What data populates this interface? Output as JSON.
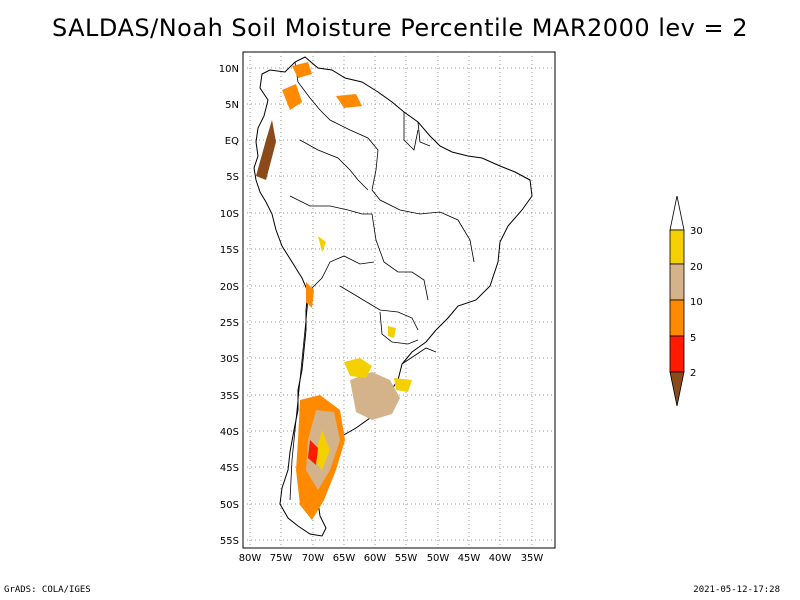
{
  "title": "SALDAS/Noah Soil Moisture Percentile MAR2000 lev = 2",
  "footer": {
    "left": "GrADS: COLA/IGES",
    "right": "2021-05-12-17:28"
  },
  "map": {
    "lat_labels": [
      "10N",
      "5N",
      "EQ",
      "5S",
      "10S",
      "15S",
      "20S",
      "25S",
      "30S",
      "35S",
      "40S",
      "45S",
      "50S",
      "55S"
    ],
    "lon_labels": [
      "80W",
      "75W",
      "70W",
      "65W",
      "60W",
      "55W",
      "50W",
      "45W",
      "40W",
      "35W"
    ]
  },
  "colorbar": {
    "labels": [
      "30",
      "20",
      "10",
      "5",
      "2"
    ],
    "colors": {
      "c30": "#f5d000",
      "c20": "#d4b38a",
      "c10": "#ff8a00",
      "c5": "#ff1a00",
      "c2": "#8a4a1a"
    }
  }
}
